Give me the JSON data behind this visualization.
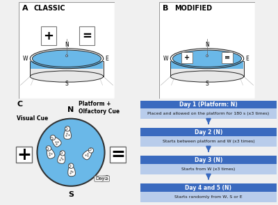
{
  "panel_A_label": "A",
  "panel_A_title": "CLASSIC",
  "panel_B_label": "B",
  "panel_B_title": "MODIFIED",
  "panel_C_label": "C",
  "day_blocks": [
    {
      "header": "Day 1 (Platform: N)",
      "desc": "Placed and allowed on the platform for 180 s (x3 times)"
    },
    {
      "header": "Day 2 (N)",
      "desc": "Starts between platform and W (x3 times)"
    },
    {
      "header": "Day 3 (N)",
      "desc": "Starts from W (x3 times)"
    },
    {
      "header": "Day 4 and 5 (N)",
      "desc": "Starts randomly from W, S or E"
    }
  ],
  "header_color": "#3a6abf",
  "desc_color": "#b8cceb",
  "arrow_color": "#3a6abf",
  "pool_color": "#6ab8e8",
  "pool_color_dark": "#4a9fd0",
  "pool_wall_color": "#e8e8e8",
  "pool_edge_color": "#222222",
  "bg_color": "#f0f0f0",
  "panel_bg": "#f8f8f8",
  "visual_cue_label": "Visual Cue",
  "olfactory_label": "Platform +\nOlfactory Cue"
}
